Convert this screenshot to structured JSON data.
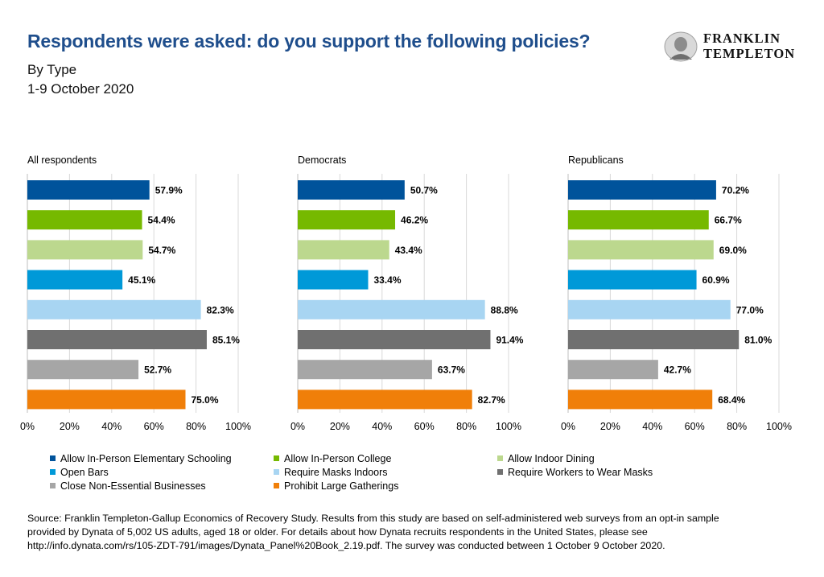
{
  "header": {
    "title": "Respondents were asked: do you support the following policies?",
    "subtitle1": "By Type",
    "subtitle2": "1-9 October 2020"
  },
  "logo": {
    "line1": "FRANKLIN",
    "line2": "TEMPLETON"
  },
  "colors": [
    "#00539b",
    "#76b900",
    "#bcd88e",
    "#0099d8",
    "#a8d5f2",
    "#707070",
    "#a6a6a6",
    "#f07f09"
  ],
  "legend": [
    "Allow In-Person Elementary Schooling",
    "Allow In-Person College",
    "Allow Indoor Dining",
    "Open Bars",
    "Require Masks Indoors",
    "Require Workers to Wear Masks",
    "Close Non-Essential Businesses",
    "Prohibit Large Gatherings"
  ],
  "chart_data": [
    {
      "type": "bar",
      "orientation": "horizontal",
      "title": "All respondents",
      "categories": [
        "Allow In-Person Elementary Schooling",
        "Allow In-Person College",
        "Allow Indoor Dining",
        "Open Bars",
        "Require Masks Indoors",
        "Require Workers to Wear Masks",
        "Close Non-Essential Businesses",
        "Prohibit Large Gatherings"
      ],
      "values": [
        57.9,
        54.4,
        54.7,
        45.1,
        82.3,
        85.1,
        52.7,
        75.0
      ],
      "labels": [
        "57.9%",
        "54.4%",
        "54.7%",
        "45.1%",
        "82.3%",
        "85.1%",
        "52.7%",
        "75.0%"
      ],
      "xlim": [
        0,
        100
      ],
      "xticks": [
        "0%",
        "20%",
        "40%",
        "60%",
        "80%",
        "100%"
      ],
      "grid": true
    },
    {
      "type": "bar",
      "orientation": "horizontal",
      "title": "Democrats",
      "categories": [
        "Allow In-Person Elementary Schooling",
        "Allow In-Person College",
        "Allow Indoor Dining",
        "Open Bars",
        "Require Masks Indoors",
        "Require Workers to Wear Masks",
        "Close Non-Essential Businesses",
        "Prohibit Large Gatherings"
      ],
      "values": [
        50.7,
        46.2,
        43.4,
        33.4,
        88.8,
        91.4,
        63.7,
        82.7
      ],
      "labels": [
        "50.7%",
        "46.2%",
        "43.4%",
        "33.4%",
        "88.8%",
        "91.4%",
        "63.7%",
        "82.7%"
      ],
      "xlim": [
        0,
        100
      ],
      "xticks": [
        "0%",
        "20%",
        "40%",
        "60%",
        "80%",
        "100%"
      ],
      "grid": true
    },
    {
      "type": "bar",
      "orientation": "horizontal",
      "title": "Republicans",
      "categories": [
        "Allow In-Person Elementary Schooling",
        "Allow In-Person College",
        "Allow Indoor Dining",
        "Open Bars",
        "Require Masks Indoors",
        "Require Workers to Wear Masks",
        "Close Non-Essential Businesses",
        "Prohibit Large Gatherings"
      ],
      "values": [
        70.2,
        66.7,
        69.0,
        60.9,
        77.0,
        81.0,
        42.7,
        68.4
      ],
      "labels": [
        "70.2%",
        "66.7%",
        "69.0%",
        "60.9%",
        "77.0%",
        "81.0%",
        "42.7%",
        "68.4%"
      ],
      "xlim": [
        0,
        100
      ],
      "xticks": [
        "0%",
        "20%",
        "40%",
        "60%",
        "80%",
        "100%"
      ],
      "grid": true
    }
  ],
  "source": {
    "line1": "Source: Franklin Templeton-Gallup Economics of Recovery Study. Results from this study are based on self-administered web surveys from an opt-in sample",
    "line2": "provided by Dynata of 5,002 US adults, aged 18 or older. For details about how Dynata recruits respondents in the United States, please see",
    "line3": "http://info.dynata.com/rs/105-ZDT-791/images/Dynata_Panel%20Book_2.19.pdf. The survey was conducted between 1 October 9 October  2020."
  }
}
